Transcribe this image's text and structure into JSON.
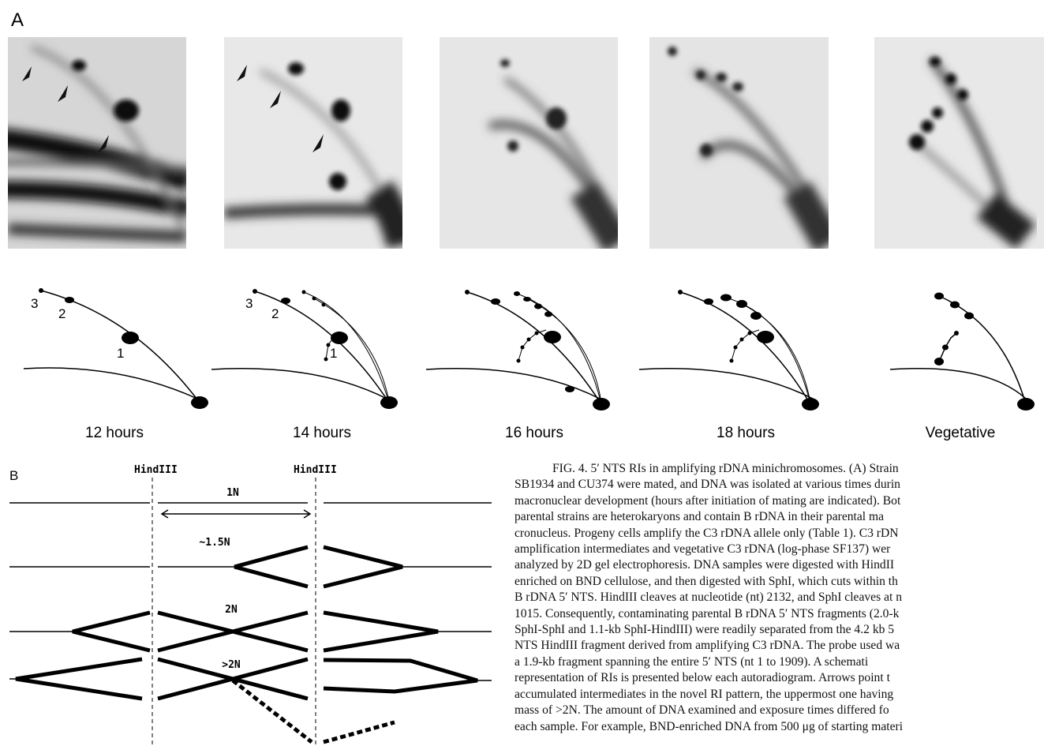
{
  "panel_a": {
    "label": "A",
    "schematics": [
      {
        "time": "12 hours",
        "spot_labels": [
          "3",
          "2",
          "1"
        ]
      },
      {
        "time": "14 hours",
        "spot_labels": [
          "3",
          "2",
          "1"
        ]
      },
      {
        "time": "16 hours"
      },
      {
        "time": "18 hours"
      },
      {
        "time": "Vegetative"
      }
    ]
  },
  "panel_b": {
    "label": "B",
    "enzyme_labels": [
      "HindIII",
      "HindIII"
    ],
    "row_labels": [
      "1N",
      "~1.5N",
      "2N",
      ">2N"
    ]
  },
  "caption": {
    "lines": [
      "FIG. 4. 5′ NTS RIs in amplifying rDNA minichromosomes. (A) Strain",
      "SB1934 and CU374 were mated, and DNA was isolated at various times durin",
      "macronuclear development (hours after initiation of mating are indicated). Bot",
      "parental strains are heterokaryons and contain B rDNA in their parental ma",
      "cronucleus. Progeny cells amplify the C3 rDNA allele only (Table 1). C3 rDN",
      "amplification intermediates and vegetative C3 rDNA (log-phase SF137) wer",
      "analyzed by 2D gel electrophoresis. DNA samples were digested with HindII",
      "enriched on BND cellulose, and then digested with SphI, which cuts within th",
      "B rDNA 5′ NTS. HindIII cleaves at nucleotide (nt) 2132, and SphI cleaves at n",
      "1015. Consequently, contaminating parental B rDNA 5′ NTS fragments (2.0-k",
      "SphI-SphI and 1.1-kb SphI-HindIII) were readily separated from the 4.2 kb 5",
      "NTS HindIII fragment derived from amplifying C3 rDNA. The probe used wa",
      "a 1.9-kb fragment spanning the entire 5′ NTS (nt 1 to 1909). A schemati",
      "representation of RIs is presented below each autoradiogram. Arrows point t",
      "accumulated intermediates in the novel RI pattern, the uppermost one having",
      "mass of >2N. The amount of DNA examined and exposure times differed fo",
      "each sample. For example, BND-enriched DNA from 500 μg of starting materi"
    ]
  }
}
